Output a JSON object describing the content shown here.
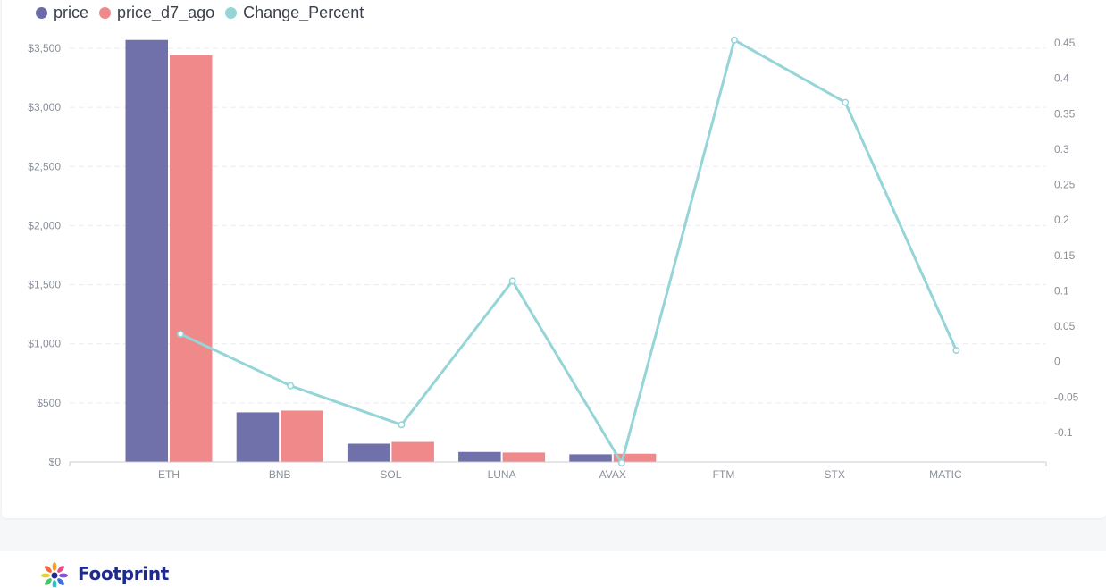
{
  "chart_data": {
    "type": "bar",
    "categories": [
      "ETH",
      "BNB",
      "SOL",
      "LUNA",
      "AVAX",
      "FTM",
      "STX",
      "MATIC"
    ],
    "series": [
      {
        "name": "price",
        "type": "bar",
        "axis": "left",
        "color": "#7070aa",
        "values": [
          3570,
          420,
          155,
          85,
          65,
          null,
          null,
          null
        ]
      },
      {
        "name": "price_d7_ago",
        "type": "bar",
        "axis": "left",
        "color": "#f0898a",
        "values": [
          3440,
          435,
          170,
          80,
          70,
          null,
          null,
          null
        ]
      },
      {
        "name": "Change_Percent",
        "type": "line",
        "axis": "right",
        "color": "#95d5d8",
        "values": [
          0.039,
          -0.034,
          -0.089,
          0.114,
          -0.143,
          0.454,
          0.366,
          0.016
        ]
      }
    ],
    "y_left": {
      "min": 0,
      "max": 3500,
      "ticks": [
        0,
        500,
        1000,
        1500,
        2000,
        2500,
        3000,
        3500
      ],
      "tick_labels": [
        "$0",
        "$500",
        "$1,000",
        "$1,500",
        "$2,000",
        "$2,500",
        "$3,000",
        "$3,500"
      ]
    },
    "y_right": {
      "min": -0.1,
      "max": 0.45,
      "ticks": [
        -0.1,
        -0.05,
        0,
        0.05,
        0.1,
        0.15,
        0.2,
        0.25,
        0.3,
        0.35,
        0.4,
        0.45
      ],
      "tick_labels": [
        "-0.1",
        "-0.05",
        "0",
        "0.05",
        "0.1",
        "0.15",
        "0.2",
        "0.25",
        "0.3",
        "0.35",
        "0.4",
        "0.45"
      ]
    },
    "legend_position": "top-left",
    "grid": true
  },
  "legend": [
    {
      "label": "price",
      "color": "#6c6aa8"
    },
    {
      "label": "price_d7_ago",
      "color": "#ef8a8a"
    },
    {
      "label": "Change_Percent",
      "color": "#95d5d8"
    }
  ],
  "footer": {
    "brand": "Footprint",
    "logo_icon": "footprint-logo-icon"
  }
}
